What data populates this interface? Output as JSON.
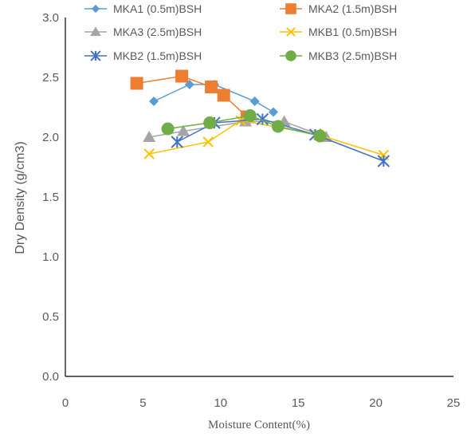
{
  "chart_data": {
    "type": "scatter",
    "title": "",
    "xlabel": "Moisture Content(%)",
    "ylabel": "Dry Density (g/cm3)",
    "xlim": [
      0,
      25
    ],
    "ylim": [
      0,
      3.0
    ],
    "x_ticks": [
      "0",
      "5",
      "10",
      "15",
      "20",
      "25"
    ],
    "y_ticks": [
      "0.0",
      "0.5",
      "1.0",
      "1.5",
      "2.0",
      "2.5",
      "3.0"
    ],
    "grid": false,
    "legend_position": "top",
    "series": [
      {
        "name": "MKA1 (0.5m)BSH",
        "color": "#5B9BD5",
        "marker": "diamond",
        "x": [
          5.7,
          8.0,
          9.6,
          12.2,
          13.4
        ],
        "y": [
          2.3,
          2.44,
          2.44,
          2.3,
          2.21
        ]
      },
      {
        "name": "MKA2 (1.5m)BSH",
        "color": "#ED7D31",
        "marker": "square",
        "x": [
          4.6,
          7.5,
          9.4,
          10.2,
          11.7
        ],
        "y": [
          2.45,
          2.51,
          2.42,
          2.35,
          2.17
        ]
      },
      {
        "name": "MKA3 (2.5m)BSH",
        "color": "#A5A5A5",
        "marker": "triangle",
        "x": [
          5.4,
          7.6,
          11.6,
          14.1,
          16.8
        ],
        "y": [
          2.0,
          2.05,
          2.13,
          2.13,
          2.0
        ]
      },
      {
        "name": "MKB1 (0.5m)BSH",
        "color": "#FFC000",
        "marker": "x",
        "x": [
          5.4,
          9.2,
          11.3,
          16.3,
          20.5
        ],
        "y": [
          1.86,
          1.96,
          2.14,
          2.02,
          1.85
        ]
      },
      {
        "name": "MKB2 (1.5m)BSH",
        "color": "#4472C4",
        "marker": "asterisk",
        "x": [
          7.2,
          9.6,
          12.7,
          16.1,
          20.5
        ],
        "y": [
          1.96,
          2.12,
          2.15,
          2.02,
          1.8
        ]
      },
      {
        "name": "MKB3 (2.5m)BSH",
        "color": "#70AD47",
        "marker": "circle",
        "x": [
          6.6,
          9.3,
          11.9,
          13.7,
          16.4
        ],
        "y": [
          2.07,
          2.12,
          2.18,
          2.09,
          2.01
        ]
      }
    ]
  }
}
